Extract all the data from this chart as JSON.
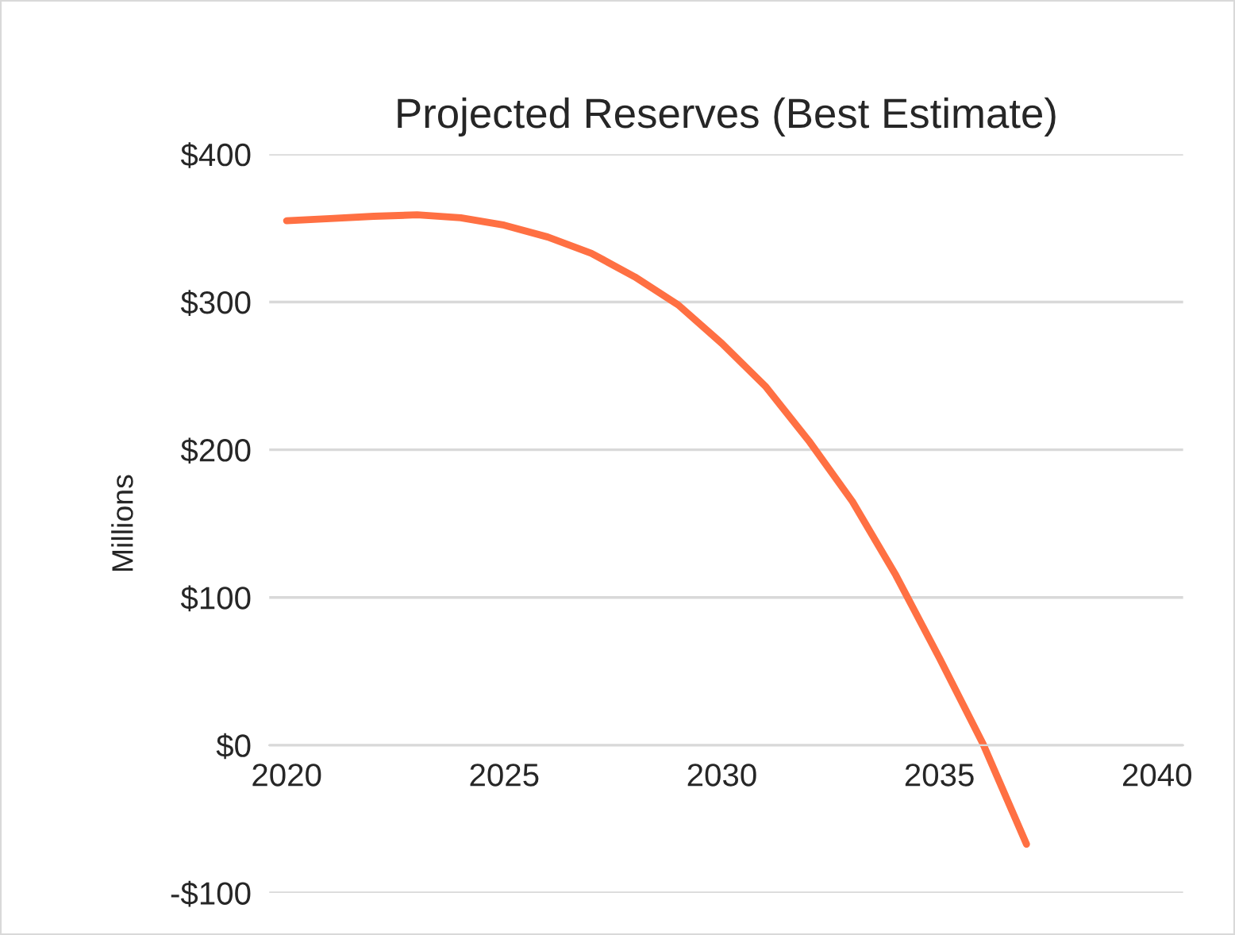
{
  "chart_data": {
    "type": "line",
    "title": "Projected Reserves (Best Estimate)",
    "ylabel": "Millions",
    "x": [
      2020,
      2021,
      2022,
      2023,
      2024,
      2025,
      2026,
      2027,
      2028,
      2029,
      2030,
      2031,
      2032,
      2033,
      2034,
      2035,
      2036,
      2037
    ],
    "series": [
      {
        "color": "#ff7043",
        "values": [
          355,
          356.5,
          358,
          359,
          357,
          352,
          344,
          333,
          317,
          298,
          272,
          243,
          206,
          165,
          115,
          59,
          1,
          -67
        ]
      }
    ],
    "xlim": [
      2019.6,
      2040.6
    ],
    "xticks": [
      2020,
      2025,
      2030,
      2035,
      2040
    ],
    "ylim": [
      -100,
      400
    ],
    "yticks": [
      {
        "value": -100,
        "label": "-$100"
      },
      {
        "value": 0,
        "label": "$0"
      },
      {
        "value": 100,
        "label": "$100"
      },
      {
        "value": 200,
        "label": "$200"
      },
      {
        "value": 300,
        "label": "$300"
      },
      {
        "value": 400,
        "label": "$400"
      }
    ],
    "grid": "y",
    "marker": "none",
    "line_style": "solid",
    "legend": false
  }
}
